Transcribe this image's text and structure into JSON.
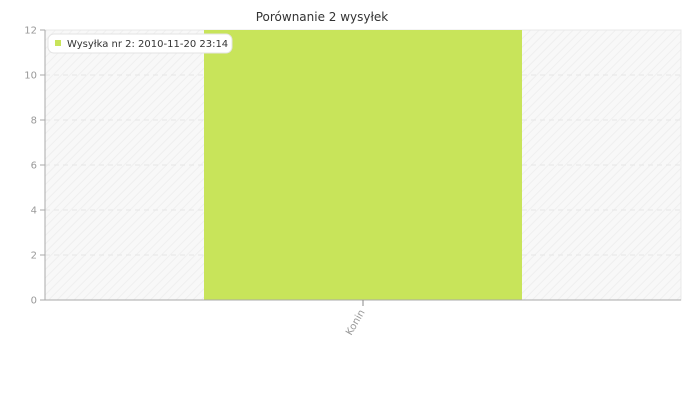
{
  "chart_data": {
    "type": "bar",
    "title": "Porównanie 2 wysyłek",
    "categories": [
      "Konin"
    ],
    "series": [
      {
        "name": "Wysyłka nr 2: 2010-11-20 23:14",
        "values": [
          12
        ]
      }
    ],
    "xlabel": "",
    "ylabel": "",
    "ylim": [
      0,
      12
    ],
    "yticks": [
      "0",
      "2",
      "4",
      "6",
      "8",
      "10",
      "12"
    ],
    "grid": true,
    "legend_position": "top-left",
    "colors": {
      "bar": "#c8e45a",
      "legend_marker": "#c8e45a",
      "grid": "#e6e6e6",
      "axis": "#aaaaaa",
      "plot_background": "#f7f7f7"
    }
  }
}
